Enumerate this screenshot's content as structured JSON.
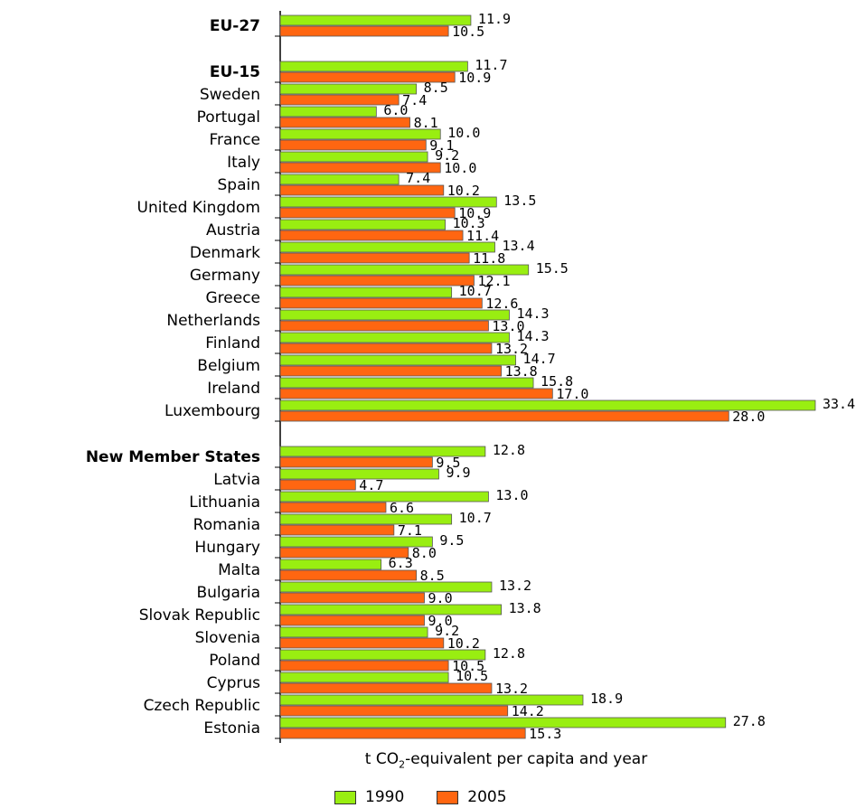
{
  "chart_data": {
    "type": "bar",
    "orientation": "horizontal",
    "xlabel_prefix": "t CO",
    "xlabel_sub": "2",
    "xlabel_suffix": "-equivalent per capita and year",
    "series": [
      {
        "name": "1990",
        "color": "#99ee11"
      },
      {
        "name": "2005",
        "color": "#ff6611"
      }
    ],
    "categories": [
      {
        "label": "EU-27",
        "bold": true,
        "v1990": 11.9,
        "v2005": 10.5
      },
      {
        "label": "EU-15",
        "bold": true,
        "v1990": 11.7,
        "v2005": 10.9
      },
      {
        "label": "Sweden",
        "v1990": 8.5,
        "v2005": 7.4
      },
      {
        "label": "Portugal",
        "v1990": 6.0,
        "v2005": 8.1
      },
      {
        "label": "France",
        "v1990": 10.0,
        "v2005": 9.1
      },
      {
        "label": "Italy",
        "v1990": 9.2,
        "v2005": 10.0
      },
      {
        "label": "Spain",
        "v1990": 7.4,
        "v2005": 10.2
      },
      {
        "label": "United Kingdom",
        "v1990": 13.5,
        "v2005": 10.9
      },
      {
        "label": "Austria",
        "v1990": 10.3,
        "v2005": 11.4
      },
      {
        "label": "Denmark",
        "v1990": 13.4,
        "v2005": 11.8
      },
      {
        "label": "Germany",
        "v1990": 15.5,
        "v2005": 12.1
      },
      {
        "label": "Greece",
        "v1990": 10.7,
        "v2005": 12.6
      },
      {
        "label": "Netherlands",
        "v1990": 14.3,
        "v2005": 13.0
      },
      {
        "label": "Finland",
        "v1990": 14.3,
        "v2005": 13.2
      },
      {
        "label": "Belgium",
        "v1990": 14.7,
        "v2005": 13.8
      },
      {
        "label": "Ireland",
        "v1990": 15.8,
        "v2005": 17.0
      },
      {
        "label": "Luxembourg",
        "v1990": 33.4,
        "v2005": 28.0
      },
      {
        "label": "New Member States",
        "bold": true,
        "v1990": 12.8,
        "v2005": 9.5
      },
      {
        "label": "Latvia",
        "v1990": 9.9,
        "v2005": 4.7
      },
      {
        "label": "Lithuania",
        "v1990": 13.0,
        "v2005": 6.6
      },
      {
        "label": "Romania",
        "v1990": 10.7,
        "v2005": 7.1
      },
      {
        "label": "Hungary",
        "v1990": 9.5,
        "v2005": 8.0
      },
      {
        "label": "Malta",
        "v1990": 6.3,
        "v2005": 8.5
      },
      {
        "label": "Bulgaria",
        "v1990": 13.2,
        "v2005": 9.0
      },
      {
        "label": "Slovak Republic",
        "v1990": 13.8,
        "v2005": 9.0
      },
      {
        "label": "Slovenia",
        "v1990": 9.2,
        "v2005": 10.2
      },
      {
        "label": "Poland",
        "v1990": 12.8,
        "v2005": 10.5
      },
      {
        "label": "Cyprus",
        "v1990": 10.5,
        "v2005": 13.2
      },
      {
        "label": "Czech Republic",
        "v1990": 18.9,
        "v2005": 14.2
      },
      {
        "label": "Estonia",
        "v1990": 27.8,
        "v2005": 15.3
      }
    ],
    "xlim": [
      0,
      33.4
    ],
    "grid": false,
    "legend_position": "bottom"
  }
}
